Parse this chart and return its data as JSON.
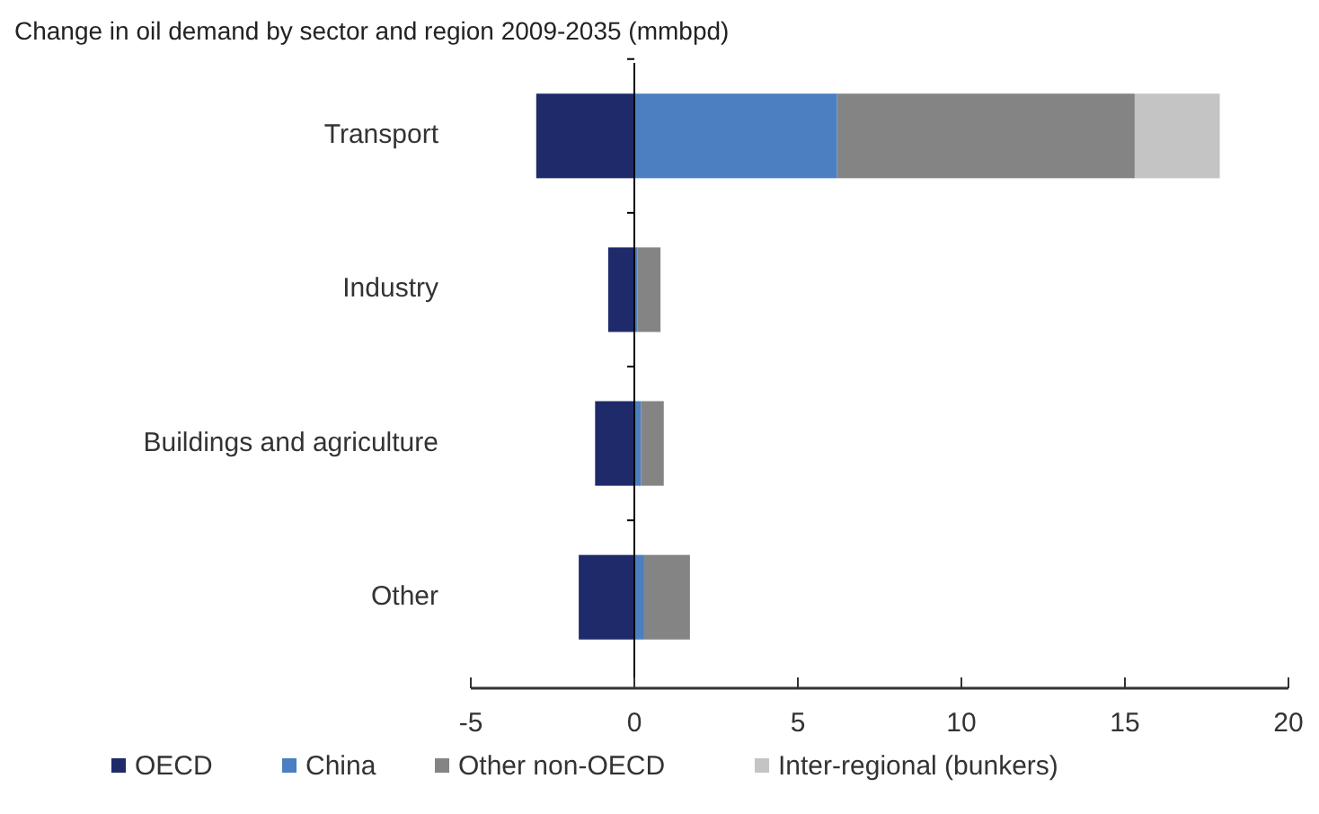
{
  "chart_data": {
    "type": "bar",
    "title": "Change in oil demand by sector and region 2009-2035 (mmbpd)",
    "orientation": "horizontal",
    "stacked": true,
    "categories": [
      "Transport",
      "Industry",
      "Buildings and agriculture",
      "Other"
    ],
    "series": [
      {
        "name": "OECD",
        "color": "#1f2a6b",
        "values": [
          -3.0,
          -0.8,
          -1.2,
          -1.7
        ]
      },
      {
        "name": "China",
        "color": "#4a7fc1",
        "values": [
          6.2,
          0.1,
          0.2,
          0.3
        ]
      },
      {
        "name": "Other non-OECD",
        "color": "#848484",
        "values": [
          9.1,
          0.7,
          0.7,
          1.4
        ]
      },
      {
        "name": "Inter-regional (bunkers)",
        "color": "#c4c4c4",
        "values": [
          2.6,
          0,
          0,
          0
        ]
      }
    ],
    "xlim": [
      -5,
      20
    ],
    "xticks": [
      -5,
      0,
      5,
      10,
      15,
      20
    ],
    "legend": "bottom"
  }
}
